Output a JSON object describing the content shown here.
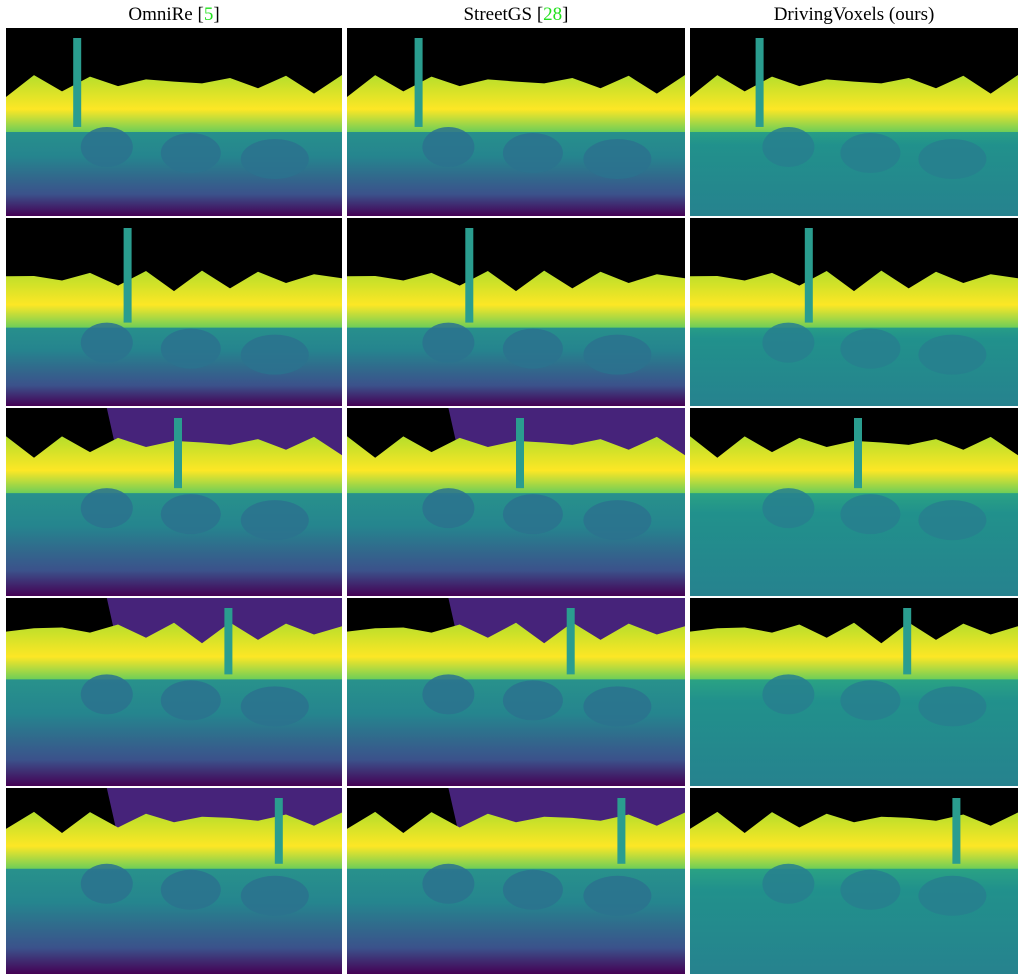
{
  "columns": [
    {
      "name": "OmniRe",
      "citation": {
        "open": "[",
        "number": "5",
        "close": "]"
      }
    },
    {
      "name": "StreetGS",
      "citation": {
        "open": "[",
        "number": "28",
        "close": "]"
      }
    },
    {
      "name": "DrivingVoxels (ours)"
    }
  ]
}
